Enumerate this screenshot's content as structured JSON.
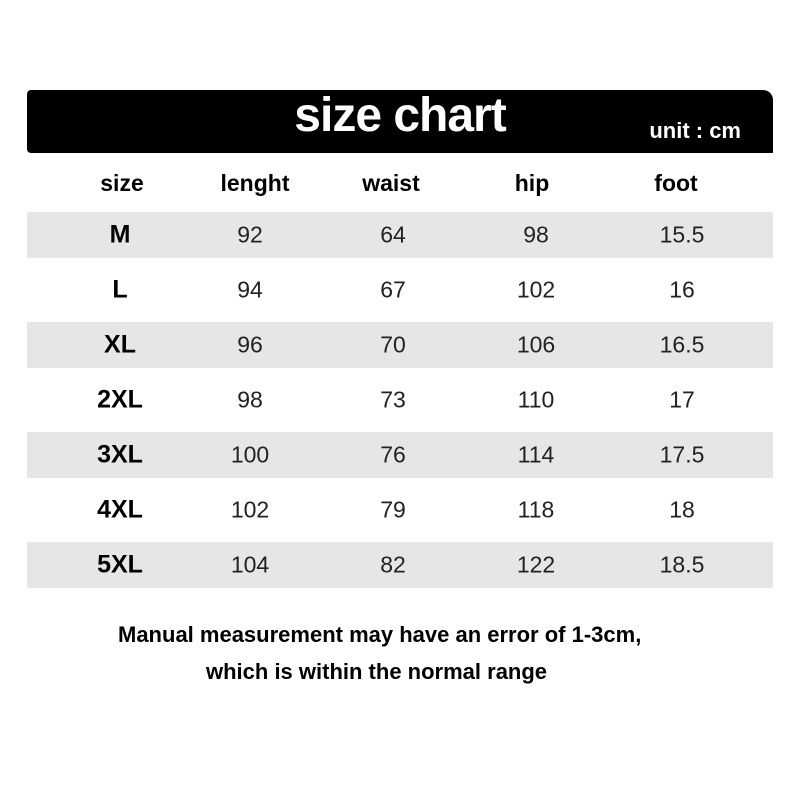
{
  "header": {
    "title": "size chart",
    "unit": "unit : cm"
  },
  "table": {
    "columns": [
      "size",
      "lenght",
      "waist",
      "hip",
      "foot"
    ],
    "rows": [
      [
        "M",
        "92",
        "64",
        "98",
        "15.5"
      ],
      [
        "L",
        "94",
        "67",
        "102",
        "16"
      ],
      [
        "XL",
        "96",
        "70",
        "106",
        "16.5"
      ],
      [
        "2XL",
        "98",
        "73",
        "110",
        "17"
      ],
      [
        "3XL",
        "100",
        "76",
        "114",
        "17.5"
      ],
      [
        "4XL",
        "102",
        "79",
        "118",
        "18"
      ],
      [
        "5XL",
        "104",
        "82",
        "122",
        "18.5"
      ]
    ],
    "shade_color": "#e6e6e6"
  },
  "note": {
    "line1": "Manual measurement may have an error of 1-3cm,",
    "line2": "which is within the normal range"
  }
}
